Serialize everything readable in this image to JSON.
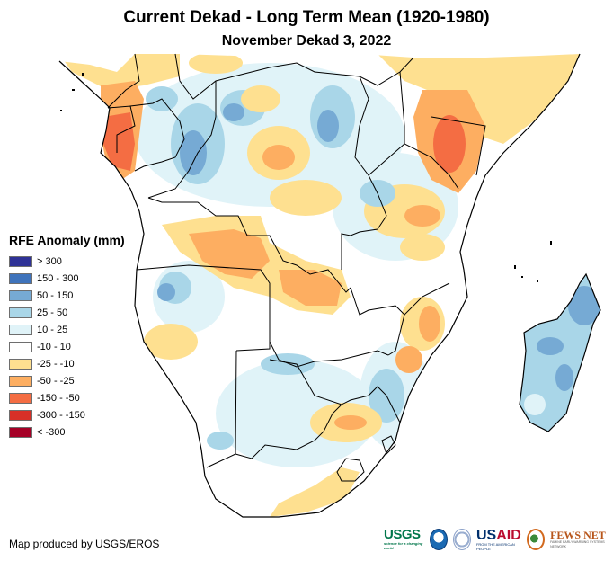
{
  "title": "Current Dekad - Long Term Mean (1920-1980)",
  "subtitle": "November Dekad 3, 2022",
  "legend": {
    "title": "RFE Anomaly (mm)",
    "items": [
      {
        "label": "> 300",
        "color": "#2f3296"
      },
      {
        "label": "150 - 300",
        "color": "#3f73bb"
      },
      {
        "label": "50 - 150",
        "color": "#76aad4"
      },
      {
        "label": "25 - 50",
        "color": "#a9d6e8"
      },
      {
        "label": "10 - 25",
        "color": "#e0f3f8"
      },
      {
        "label": "-10 - 10",
        "color": "#ffffff"
      },
      {
        "label": "-25 - -10",
        "color": "#fee090"
      },
      {
        "label": "-50 - -25",
        "color": "#fdae61"
      },
      {
        "label": "-150 - -50",
        "color": "#f46d43"
      },
      {
        "label": "-300 - -150",
        "color": "#d73027"
      },
      {
        "label": "< -300",
        "color": "#a50026"
      }
    ]
  },
  "credit": "Map produced by USGS/EROS",
  "logos": {
    "usgs": {
      "name": "USGS",
      "tagline": "science for a changing world"
    },
    "noaa": {
      "name": "NOAA"
    },
    "usaid": {
      "name_a": "US",
      "name_b": "AID",
      "tagline": "FROM THE AMERICAN PEOPLE"
    },
    "fews": {
      "name": "FEWS NET",
      "tagline": "FAMINE EARLY WARNING SYSTEMS NETWORK"
    }
  },
  "map": {
    "region": "Central, East and Southern Africa",
    "variable": "Rainfall estimate anomaly",
    "colors": {
      "land": "#ffffff",
      "border": "#000000",
      "c_light_blue": "#e0f3f8",
      "c_blue25": "#a9d6e8",
      "c_blue50": "#76aad4",
      "c_blue150": "#3f73bb",
      "c_yellow": "#fee090",
      "c_orange": "#fdae61",
      "c_red": "#f46d43"
    }
  }
}
